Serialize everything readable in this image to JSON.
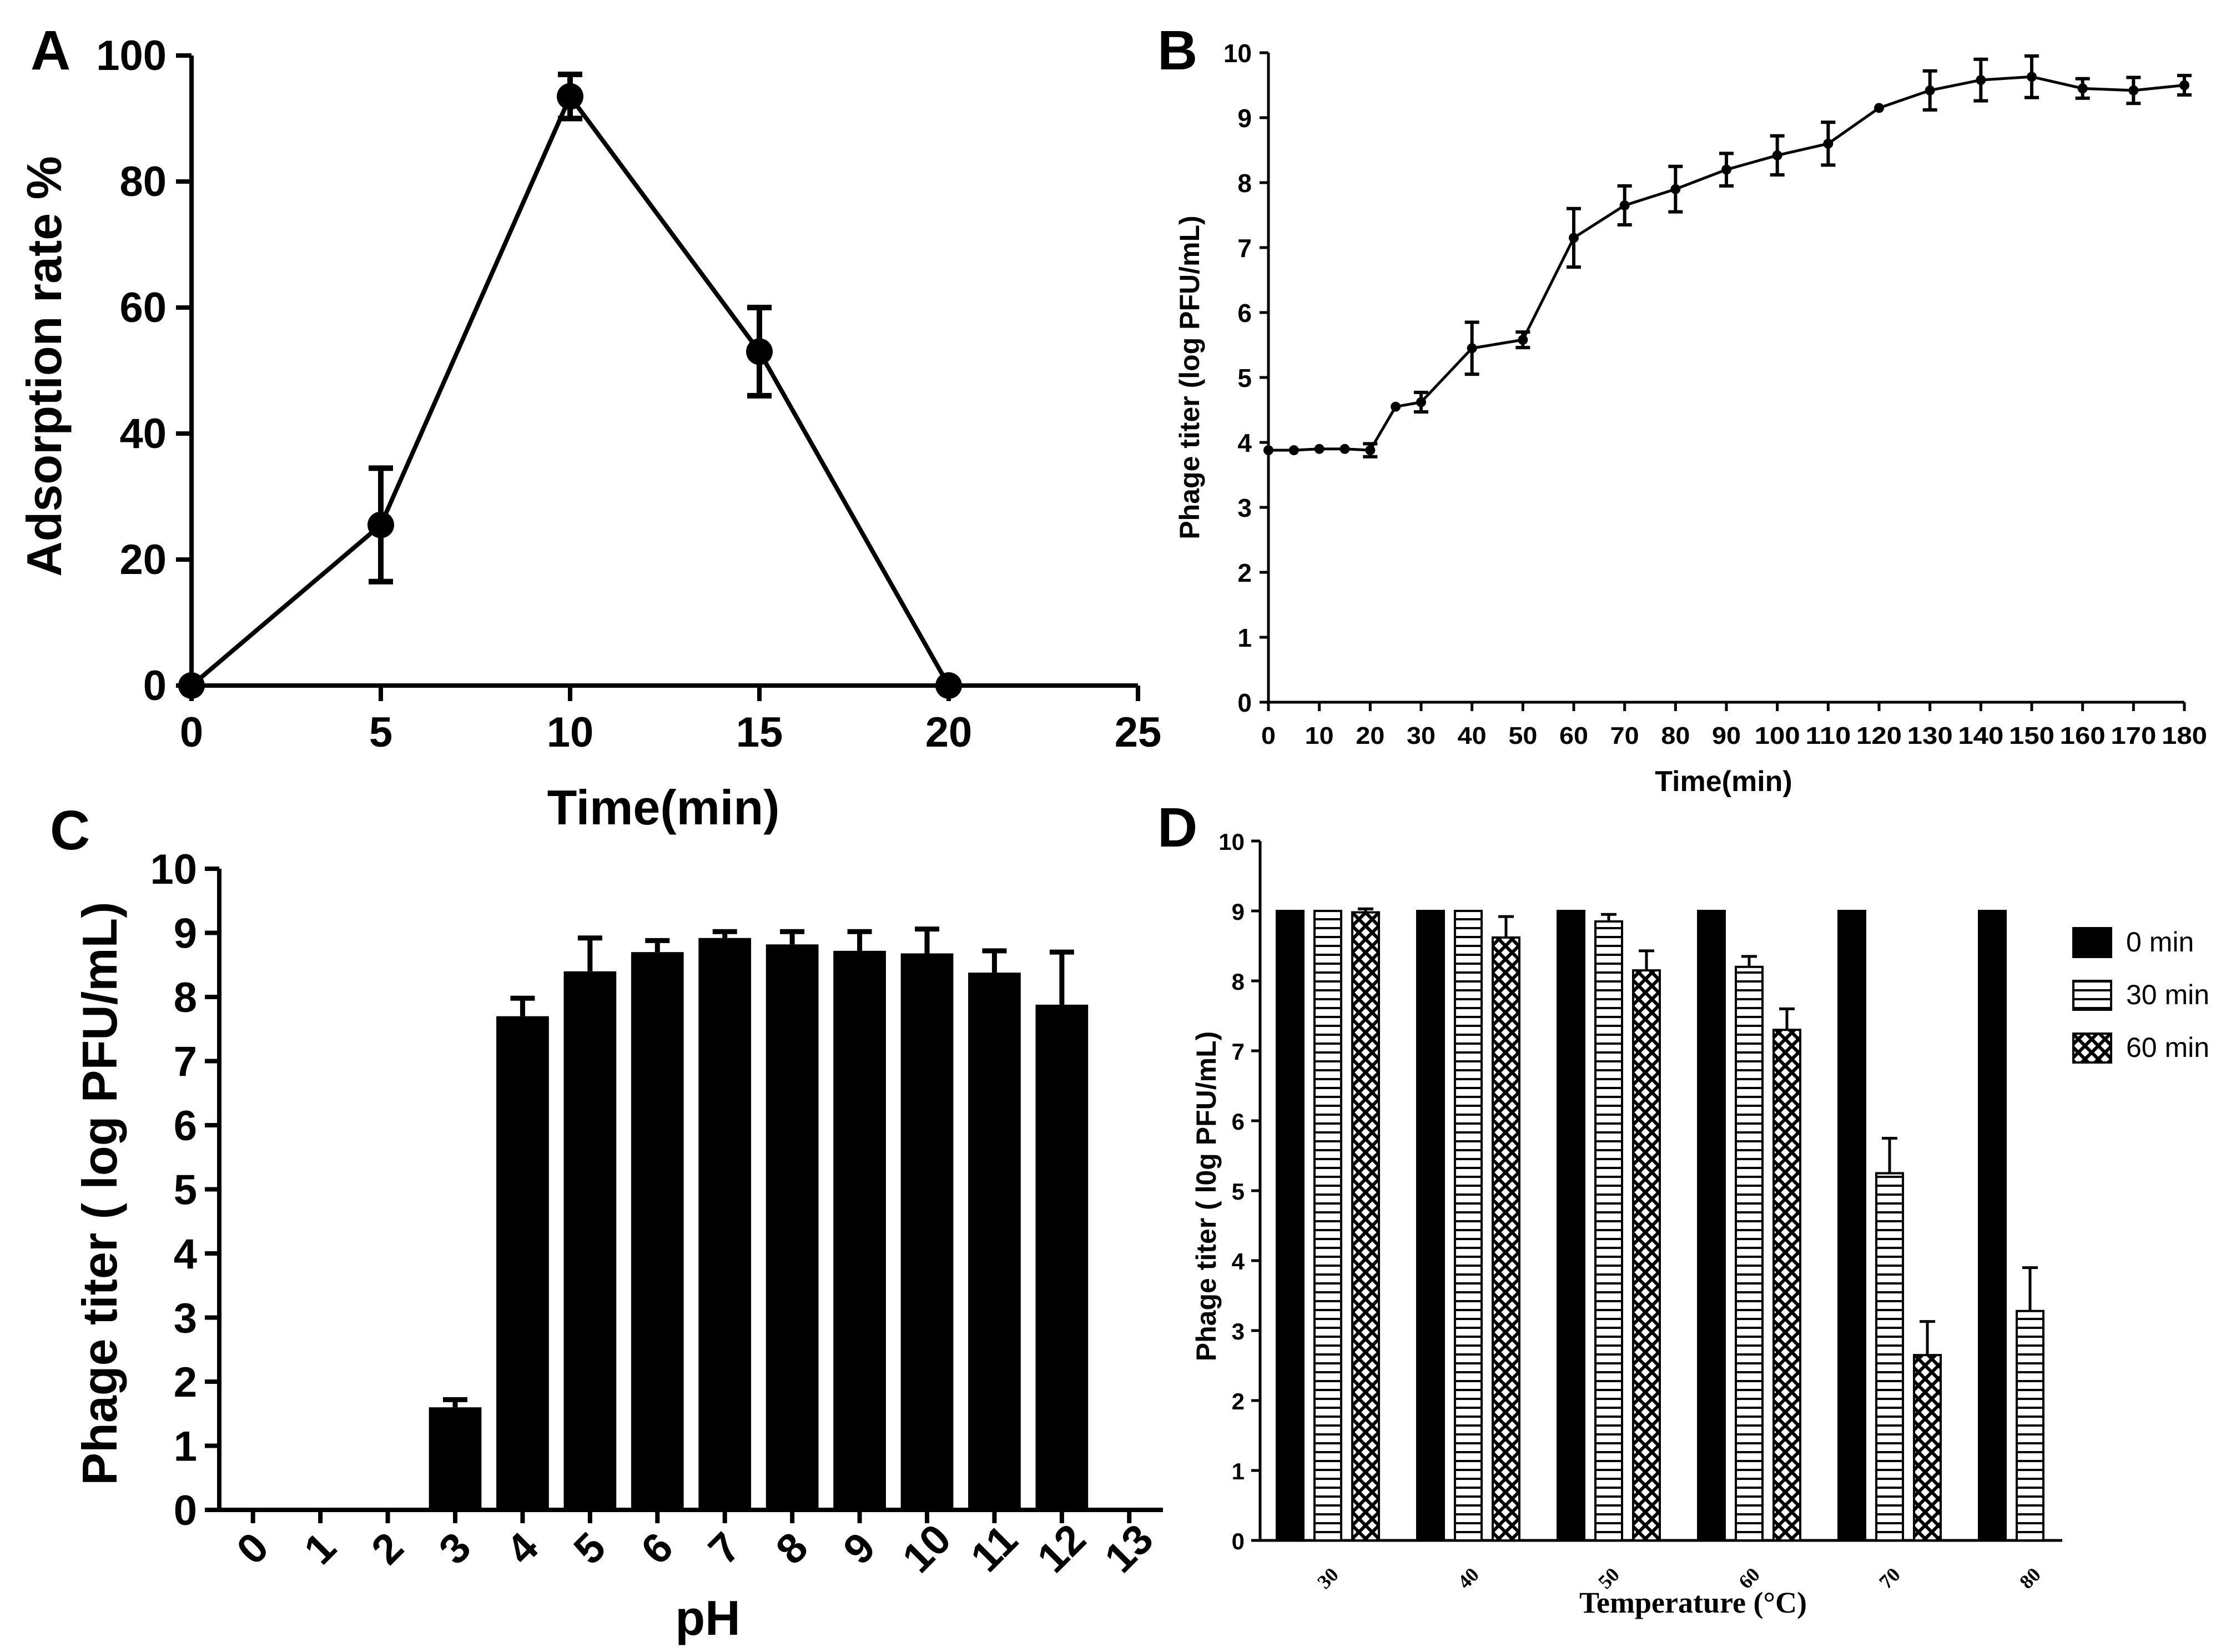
{
  "chart_data": [
    {
      "panel": "A",
      "type": "line",
      "title": "",
      "xlabel": "Time(min)",
      "ylabel": "Adsorption rate %",
      "xlim": [
        0,
        25
      ],
      "ylim": [
        0,
        100
      ],
      "xticks": [
        "0",
        "5",
        "10",
        "15",
        "20",
        "25"
      ],
      "yticks": [
        "0",
        "20",
        "40",
        "60",
        "80",
        "100"
      ],
      "series": [
        {
          "name": "Adsorption rate",
          "x": [
            0,
            5,
            10,
            15,
            20
          ],
          "y": [
            0,
            25.5,
            93.5,
            53,
            0
          ],
          "err": [
            0,
            9,
            3.5,
            7,
            0
          ]
        }
      ]
    },
    {
      "panel": "B",
      "type": "line",
      "title": "",
      "xlabel": "Time(min)",
      "ylabel": "Phage titer (log PFU/mL)",
      "xlim": [
        0,
        180
      ],
      "ylim": [
        0,
        10
      ],
      "xticks": [
        "0",
        "10",
        "20",
        "30",
        "40",
        "50",
        "60",
        "70",
        "80",
        "90",
        "100",
        "110",
        "120",
        "130",
        "140",
        "150",
        "160",
        "170",
        "180"
      ],
      "yticks": [
        "0",
        "1",
        "2",
        "3",
        "4",
        "5",
        "6",
        "7",
        "8",
        "9",
        "10"
      ],
      "series": [
        {
          "name": "Phage titer",
          "x": [
            0,
            5,
            10,
            15,
            20,
            25,
            30,
            40,
            50,
            60,
            70,
            80,
            90,
            100,
            110,
            120,
            130,
            140,
            150,
            160,
            170,
            180
          ],
          "y": [
            3.88,
            3.88,
            3.9,
            3.9,
            3.88,
            4.55,
            4.62,
            5.45,
            5.58,
            7.15,
            7.65,
            7.9,
            8.2,
            8.42,
            8.6,
            9.15,
            9.42,
            9.58,
            9.63,
            9.45,
            9.42,
            9.5
          ],
          "err": [
            0,
            0,
            0,
            0,
            0.1,
            0,
            0.15,
            0.4,
            0.12,
            0.45,
            0.3,
            0.35,
            0.25,
            0.3,
            0.33,
            0,
            0.3,
            0.32,
            0.32,
            0.15,
            0.2,
            0.15
          ]
        }
      ]
    },
    {
      "panel": "C",
      "type": "bar",
      "title": "",
      "xlabel": "pH",
      "ylabel": "Phage titer ( log PFU/mL)",
      "ylim": [
        0,
        10
      ],
      "categories": [
        "0",
        "1",
        "2",
        "3",
        "4",
        "5",
        "6",
        "7",
        "8",
        "9",
        "10",
        "11",
        "12",
        "13"
      ],
      "yticks": [
        "0",
        "1",
        "2",
        "3",
        "4",
        "5",
        "6",
        "7",
        "8",
        "9",
        "10"
      ],
      "values": [
        0,
        0,
        0,
        1.6,
        7.7,
        8.4,
        8.7,
        8.92,
        8.82,
        8.72,
        8.68,
        8.38,
        7.88,
        0
      ],
      "err": [
        0,
        0,
        0,
        0.12,
        0.28,
        0.52,
        0.18,
        0.1,
        0.2,
        0.3,
        0.38,
        0.34,
        0.82,
        0
      ]
    },
    {
      "panel": "D",
      "type": "bar",
      "title": "",
      "xlabel": "Temperature (°C)",
      "ylabel": "Phage titer ( l0g PFU/mL)",
      "ylim": [
        0,
        10
      ],
      "categories": [
        "30",
        "40",
        "50",
        "60",
        "70",
        "80"
      ],
      "yticks": [
        "0",
        "1",
        "2",
        "3",
        "4",
        "5",
        "6",
        "7",
        "8",
        "9",
        "10"
      ],
      "legend_position": "right",
      "series": [
        {
          "name": "0 min",
          "pattern": "solid",
          "values": [
            9,
            9,
            9,
            9,
            9,
            9
          ],
          "err": [
            0,
            0,
            0,
            0,
            0,
            0
          ]
        },
        {
          "name": "30 min",
          "pattern": "horizontal-lines",
          "values": [
            9,
            9,
            8.85,
            8.2,
            5.25,
            3.28
          ],
          "err": [
            0,
            0,
            0.1,
            0.15,
            0.5,
            0.62
          ]
        },
        {
          "name": "60 min",
          "pattern": "crosshatch",
          "values": [
            8.98,
            8.62,
            8.15,
            7.3,
            2.65,
            0
          ],
          "err": [
            0.05,
            0.3,
            0.28,
            0.3,
            0.48,
            0
          ]
        }
      ]
    }
  ],
  "panels": {
    "a": "A",
    "b": "B",
    "c": "C",
    "d": "D"
  },
  "colors": {
    "ink": "#000000",
    "bar": "#000000",
    "background": "#ffffff"
  }
}
